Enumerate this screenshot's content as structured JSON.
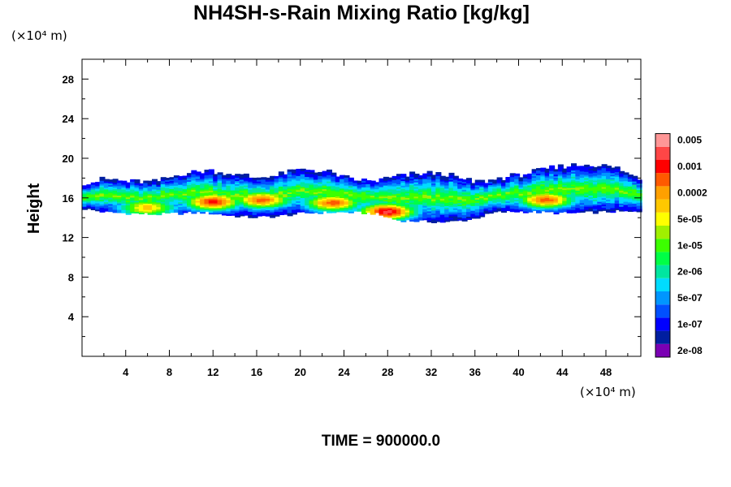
{
  "chart_data": {
    "type": "heatmap",
    "title": "NH4SH-s-Rain Mixing Ratio [kg/kg]",
    "ylabel": "Height",
    "x_unit": "(×10⁴ m)",
    "y_unit": "(×10⁴ m)",
    "xlim": [
      0,
      51.2
    ],
    "ylim": [
      0,
      30
    ],
    "x_ticks": [
      "4",
      "8",
      "12",
      "16",
      "20",
      "24",
      "28",
      "32",
      "36",
      "40",
      "44",
      "48"
    ],
    "y_ticks": [
      "4",
      "8",
      "12",
      "16",
      "20",
      "24",
      "28"
    ],
    "x_tick_values": [
      4,
      8,
      12,
      16,
      20,
      24,
      28,
      32,
      36,
      40,
      44,
      48
    ],
    "y_tick_values": [
      4,
      8,
      12,
      16,
      20,
      24,
      28
    ],
    "grid": false,
    "annotation": "TIME = 900000.0",
    "colorbar": {
      "colors": [
        "#7b00b4",
        "#001ea0",
        "#0000ff",
        "#0050ff",
        "#0096ff",
        "#00dcff",
        "#00e6a0",
        "#00ff46",
        "#3cff00",
        "#a0f000",
        "#ffff00",
        "#ffc800",
        "#ffa000",
        "#ff5a00",
        "#ff0000",
        "#ff4646",
        "#ff9696"
      ],
      "labels": [
        "2e-08",
        "1e-07",
        "5e-07",
        "2e-06",
        "1e-05",
        "5e-05",
        "0.0002",
        "0.001",
        "0.005"
      ],
      "label_levels": [
        1,
        3,
        5,
        7,
        9,
        11,
        13,
        15,
        17
      ]
    },
    "band": {
      "bottom_km": [
        15,
        14.6,
        14.5,
        14.4,
        14.5,
        14.6,
        14.3,
        14.1,
        14.2,
        14.5,
        14.6,
        14.6,
        14.5,
        13.8,
        13.7,
        13.6,
        13.9,
        14.6,
        14.7,
        14.6,
        14.5,
        14.6,
        14.7,
        14.6
      ],
      "top_km": [
        17.4,
        17.8,
        17.6,
        17.5,
        18.3,
        18.7,
        18.4,
        18.0,
        18.2,
        18.8,
        18.6,
        17.8,
        17.6,
        18.1,
        18.4,
        18.3,
        17.5,
        17.8,
        18.2,
        18.8,
        19.2,
        19.3,
        18.9,
        17.8
      ],
      "intensity_peaks": [
        {
          "x": 6.0,
          "y": 15.0,
          "level": 11
        },
        {
          "x": 12.0,
          "y": 15.6,
          "level": 14
        },
        {
          "x": 16.5,
          "y": 15.8,
          "level": 13
        },
        {
          "x": 23.0,
          "y": 15.5,
          "level": 13
        },
        {
          "x": 28.0,
          "y": 14.6,
          "level": 15
        },
        {
          "x": 42.5,
          "y": 15.8,
          "level": 13
        }
      ]
    }
  }
}
